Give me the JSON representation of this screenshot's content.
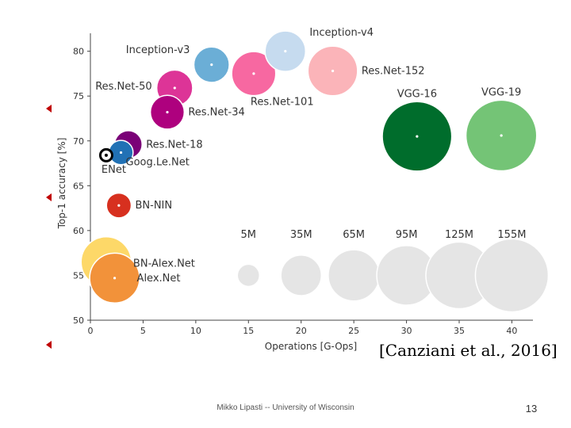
{
  "slide": {
    "citation": "[Canziani et al., 2016]",
    "footer": "Mikko Lipasti -- University of Wisconsin",
    "page_number": "13",
    "bullet_color": "#c00000"
  },
  "chart_data": {
    "type": "scatter",
    "title": "",
    "xlabel": "Operations [G-Ops]",
    "ylabel": "Top-1 accuracy [%]",
    "xlim": [
      0,
      42
    ],
    "ylim": [
      50,
      82
    ],
    "xticks": [
      0,
      5,
      10,
      15,
      20,
      25,
      30,
      35,
      40
    ],
    "yticks": [
      50,
      55,
      60,
      65,
      70,
      75,
      80
    ],
    "grid": false,
    "points": [
      {
        "name": "Inception-v4",
        "x": 18.5,
        "y": 80.0,
        "params_m": 35,
        "color": "#c6dbef",
        "label_pos": "right"
      },
      {
        "name": "Inception-v3",
        "x": 11.5,
        "y": 78.5,
        "params_m": 24,
        "color": "#6baed6",
        "label_pos": "left"
      },
      {
        "name": "Res.Net-152",
        "x": 23.0,
        "y": 77.8,
        "params_m": 60,
        "color": "#fbb4b9",
        "label_pos": "right"
      },
      {
        "name": "Res.Net-101",
        "x": 15.5,
        "y": 77.5,
        "params_m": 44,
        "color": "#f768a1",
        "label_pos": "below"
      },
      {
        "name": "Res.Net-50",
        "x": 8.0,
        "y": 75.9,
        "params_m": 25,
        "color": "#dd3497",
        "label_pos": "left"
      },
      {
        "name": "Res.Net-34",
        "x": 7.3,
        "y": 73.2,
        "params_m": 21,
        "color": "#ae017e",
        "label_pos": "right"
      },
      {
        "name": "Res.Net-18",
        "x": 3.6,
        "y": 69.6,
        "params_m": 11,
        "color": "#7a0177",
        "label_pos": "right"
      },
      {
        "name": "VGG-16",
        "x": 31.0,
        "y": 70.5,
        "params_m": 138,
        "color": "#006d2c",
        "label_pos": "above"
      },
      {
        "name": "VGG-19",
        "x": 39.0,
        "y": 70.6,
        "params_m": 144,
        "color": "#74c476",
        "label_pos": "above"
      },
      {
        "name": "Goog.Le.Net",
        "x": 2.9,
        "y": 68.7,
        "params_m": 7,
        "color": "#2171b5",
        "label_pos": "right"
      },
      {
        "name": "ENet",
        "x": 1.5,
        "y": 68.4,
        "params_m": 0.4,
        "color": "#000000",
        "label_pos": "below"
      },
      {
        "name": "BN-NIN",
        "x": 2.7,
        "y": 62.8,
        "params_m": 7.6,
        "color": "#d7301f",
        "label_pos": "right"
      },
      {
        "name": "BN-Alex.Net",
        "x": 1.5,
        "y": 56.5,
        "params_m": 62,
        "color": "#fdd868",
        "label_pos": "right"
      },
      {
        "name": "Alex.Net",
        "x": 2.3,
        "y": 54.7,
        "params_m": 61,
        "color": "#f2923a",
        "label_pos": "right"
      }
    ],
    "size_legend": [
      {
        "label": "5M",
        "x": 15,
        "y": 55,
        "params_m": 5
      },
      {
        "label": "35M",
        "x": 20,
        "y": 55,
        "params_m": 35
      },
      {
        "label": "65M",
        "x": 25,
        "y": 55,
        "params_m": 65
      },
      {
        "label": "95M",
        "x": 30,
        "y": 55,
        "params_m": 95
      },
      {
        "label": "125M",
        "x": 35,
        "y": 55,
        "params_m": 125
      },
      {
        "label": "155M",
        "x": 40,
        "y": 55,
        "params_m": 155
      }
    ],
    "size_legend_color": "#e5e5e5"
  }
}
